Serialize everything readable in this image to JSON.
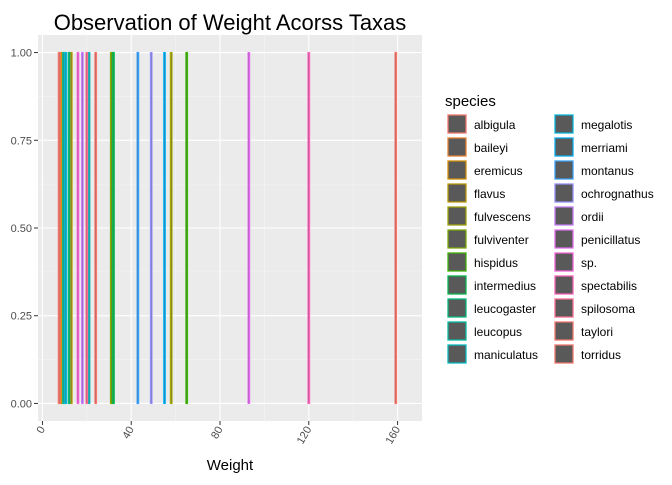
{
  "chart_data": {
    "type": "bar",
    "title": "Observation of Weight Acorss Taxas",
    "xlabel": "Weight",
    "ylabel": "",
    "xlim": [
      -2,
      171
    ],
    "ylim": [
      -0.05,
      1.05
    ],
    "x_ticks": [
      0,
      40,
      80,
      120,
      160
    ],
    "y_ticks": [
      0.0,
      0.25,
      0.5,
      0.75,
      1.0
    ],
    "y_tick_labels": [
      "0.00",
      "0.25",
      "0.50",
      "0.75",
      "1.00"
    ],
    "x_tick_rotation": -60,
    "grid": true,
    "legend": {
      "title": "species",
      "position": "right",
      "fill": "#595959"
    },
    "series": [
      {
        "name": "albigula",
        "color": "#F8766D",
        "x": 159.2
      },
      {
        "name": "baileyi",
        "color": "#EA8331",
        "x": 8.0
      },
      {
        "name": "eremicus",
        "color": "#D89000",
        "x": 9.0
      },
      {
        "name": "flavus",
        "color": "#C09B00",
        "x": 13.0
      },
      {
        "name": "fulvescens",
        "color": "#A3A500",
        "x": 58.0
      },
      {
        "name": "fulviventer",
        "color": "#7CAE00",
        "x": 31.0
      },
      {
        "name": "hispidus",
        "color": "#39B600",
        "x": 65.0
      },
      {
        "name": "intermedius",
        "color": "#00BB4E",
        "x": 32.0
      },
      {
        "name": "leucogaster",
        "color": "#00BF7D",
        "x": 12.0
      },
      {
        "name": "leucopus",
        "color": "#00C1A3",
        "x": 9.5
      },
      {
        "name": "maniculatus",
        "color": "#00BFC4",
        "x": 21.0
      },
      {
        "name": "megalotis",
        "color": "#00BAE0",
        "x": 10.5
      },
      {
        "name": "merriami",
        "color": "#00B0F6",
        "x": 55.0
      },
      {
        "name": "montanus",
        "color": "#35A2FF",
        "x": 43.0
      },
      {
        "name": "ochrognathus",
        "color": "#9590FF",
        "x": 49.0
      },
      {
        "name": "ordii",
        "color": "#C77CFF",
        "x": 18.0
      },
      {
        "name": "penicillatus",
        "color": "#E76BF3",
        "x": 93.0
      },
      {
        "name": "sp.",
        "color": "#FA62DB",
        "x": 16.0
      },
      {
        "name": "spectabilis",
        "color": "#FF62BC",
        "x": 120.0
      },
      {
        "name": "spilosoma",
        "color": "#FF6C91",
        "x": 20.0
      },
      {
        "name": "taylori",
        "color": "#F8766D",
        "x": 24.0
      },
      {
        "name": "torridus",
        "color": "#F8766D",
        "x": 7.5
      }
    ]
  }
}
